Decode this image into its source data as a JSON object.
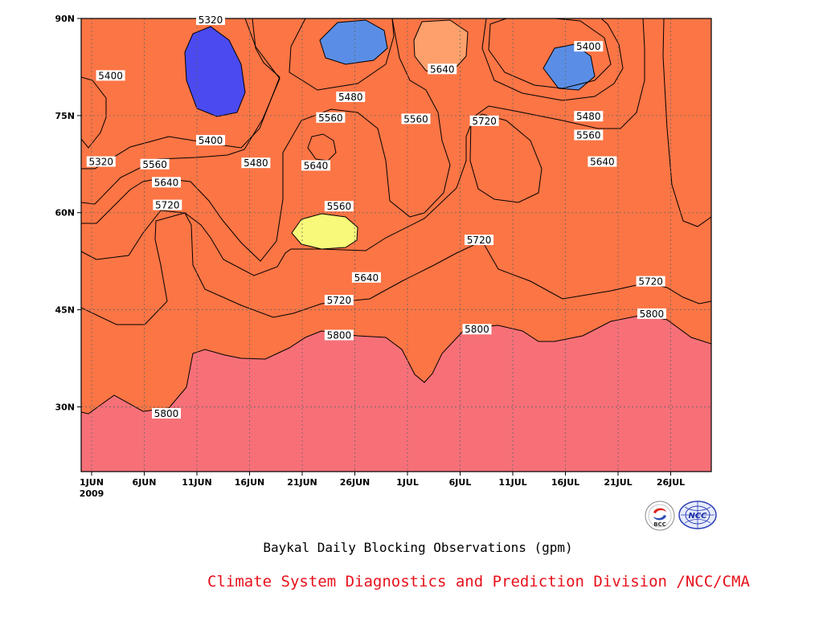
{
  "chart_data": {
    "type": "heatmap",
    "title": "Baykal Daily Blocking Observations (gpm)",
    "xlabel": "",
    "ylabel": "",
    "x_tick_labels": [
      "1JUN",
      "6JUN",
      "11JUN",
      "16JUN",
      "21JUN",
      "26JUN",
      "1JUL",
      "6JUL",
      "11JUL",
      "16JUL",
      "21JUL",
      "26JUL"
    ],
    "x_year_label": "2009",
    "x_range_days": [
      0,
      60
    ],
    "y_tick_labels": [
      "30N",
      "45N",
      "60N",
      "75N",
      "90N"
    ],
    "y_range_lat": [
      20,
      90
    ],
    "contour_levels": [
      5320,
      5400,
      5480,
      5560,
      5640,
      5720,
      5800
    ],
    "level_colors": [
      "#4a4af0",
      "#5a8ee6",
      "#62c6f8",
      "#f8f87a",
      "#fee39e",
      "#fda06c",
      "#fc7545",
      "#f77078"
    ],
    "contour_labels": [
      {
        "text": "5320",
        "day": 11.3,
        "lat": 89.8
      },
      {
        "text": "5400",
        "day": 1.8,
        "lat": 81.2
      },
      {
        "text": "5400",
        "day": 11.3,
        "lat": 71.2
      },
      {
        "text": "5320",
        "day": 0.9,
        "lat": 67.9
      },
      {
        "text": "5560",
        "day": 6.0,
        "lat": 67.5
      },
      {
        "text": "5480",
        "day": 15.6,
        "lat": 67.7
      },
      {
        "text": "5640",
        "day": 7.1,
        "lat": 64.7
      },
      {
        "text": "5720",
        "day": 7.2,
        "lat": 61.2
      },
      {
        "text": "5480",
        "day": 24.6,
        "lat": 77.9
      },
      {
        "text": "5560",
        "day": 22.7,
        "lat": 74.7
      },
      {
        "text": "5640",
        "day": 21.3,
        "lat": 67.3
      },
      {
        "text": "5560",
        "day": 23.5,
        "lat": 61.0
      },
      {
        "text": "5640",
        "day": 33.3,
        "lat": 82.2
      },
      {
        "text": "5560",
        "day": 30.8,
        "lat": 74.5
      },
      {
        "text": "5720",
        "day": 37.3,
        "lat": 74.2
      },
      {
        "text": "5400",
        "day": 47.2,
        "lat": 85.7
      },
      {
        "text": "5480",
        "day": 47.2,
        "lat": 74.9
      },
      {
        "text": "5560",
        "day": 47.2,
        "lat": 72.0
      },
      {
        "text": "5640",
        "day": 48.5,
        "lat": 67.9
      },
      {
        "text": "5720",
        "day": 36.8,
        "lat": 55.8
      },
      {
        "text": "5640",
        "day": 26.1,
        "lat": 50.0
      },
      {
        "text": "5720",
        "day": 23.5,
        "lat": 46.5
      },
      {
        "text": "5720",
        "day": 53.1,
        "lat": 49.4
      },
      {
        "text": "5800",
        "day": 23.5,
        "lat": 41.1
      },
      {
        "text": "5800",
        "day": 36.6,
        "lat": 42.0
      },
      {
        "text": "5800",
        "day": 53.2,
        "lat": 44.4
      },
      {
        "text": "5800",
        "day": 7.1,
        "lat": 29.0
      }
    ]
  },
  "caption": {
    "title": "Baykal Daily Blocking Observations (gpm)",
    "credit": "Climate System Diagnostics and Prediction Division /NCC/CMA"
  },
  "logos": {
    "left": "BCC",
    "right": "NCC"
  }
}
